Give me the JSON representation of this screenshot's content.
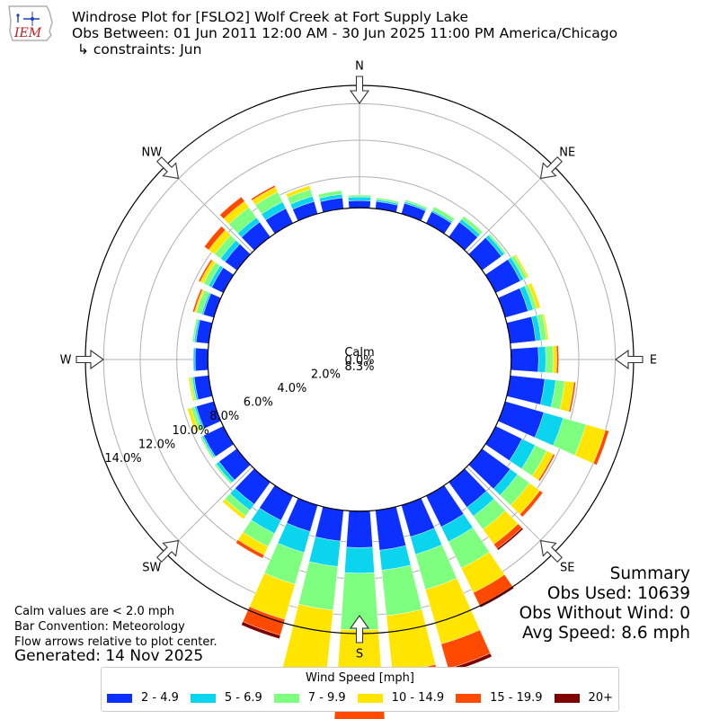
{
  "header": {
    "title": "Windrose Plot for [FSLO2] Wolf Creek at Fort Supply Lake",
    "obs_between": "Obs Between: 01 Jun 2011 12:00 AM - 30 Jun 2025 11:00 PM America/Chicago",
    "constraints": "↳ constraints: Jun",
    "logo_text": "IEM"
  },
  "footer": {
    "calm_note": "Calm values are < 2.0 mph",
    "bar_convention": "Bar Convention: Meteorology",
    "flow_note": "Flow arrows relative to plot center.",
    "generated": "Generated: 14 Nov 2025"
  },
  "summary": {
    "title": "Summary",
    "obs_used": "Obs Used: 10639",
    "obs_without_wind": "Obs Without Wind: 0",
    "avg_speed": "Avg Speed: 8.6 mph"
  },
  "chart_data": {
    "type": "windrose",
    "calm_label": "Calm",
    "calm_value": "8.3%",
    "calm_percent": 8.3,
    "radial_ticks": [
      0,
      2,
      4,
      6,
      8,
      10,
      12,
      14
    ],
    "radial_tick_labels": [
      "0.0%",
      "2.0%",
      "4.0%",
      "6.0%",
      "8.0%",
      "10.0%",
      "12.0%",
      "14.0%"
    ],
    "rmax": 15,
    "compass_labels": [
      "N",
      "NE",
      "E",
      "SE",
      "S",
      "SW",
      "W",
      "NW"
    ],
    "legend_title": "Wind Speed [mph]",
    "speed_bins": [
      {
        "label": "2 - 4.9",
        "color": "#0b30ff"
      },
      {
        "label": "5 - 6.9",
        "color": "#0bd5ee"
      },
      {
        "label": "7 - 9.9",
        "color": "#7fff7f"
      },
      {
        "label": "10 - 14.9",
        "color": "#ffe500"
      },
      {
        "label": "15 - 19.9",
        "color": "#ff4a00"
      },
      {
        "label": "20+",
        "color": "#7f0000"
      }
    ],
    "directions_deg": [
      0,
      10,
      20,
      30,
      40,
      50,
      60,
      70,
      80,
      90,
      100,
      110,
      120,
      130,
      140,
      150,
      160,
      170,
      180,
      190,
      200,
      210,
      220,
      230,
      240,
      250,
      260,
      270,
      280,
      290,
      300,
      310,
      320,
      330,
      340,
      350
    ],
    "cumulative_percent": [
      [
        8.7,
        8.9,
        9.0,
        9.0,
        9.0,
        9.0
      ],
      [
        8.7,
        8.8,
        8.9,
        8.9,
        8.9,
        8.9
      ],
      [
        8.9,
        9.0,
        9.1,
        9.1,
        9.1,
        9.1
      ],
      [
        9.0,
        9.1,
        9.3,
        9.3,
        9.3,
        9.3
      ],
      [
        9.3,
        9.5,
        9.7,
        9.7,
        9.7,
        9.7
      ],
      [
        9.6,
        9.8,
        9.9,
        9.9,
        9.9,
        9.9
      ],
      [
        9.8,
        10.0,
        10.2,
        10.3,
        10.3,
        10.3
      ],
      [
        9.6,
        9.9,
        10.1,
        10.3,
        10.3,
        10.3
      ],
      [
        9.7,
        10.0,
        10.3,
        10.4,
        10.4,
        10.4
      ],
      [
        9.8,
        10.2,
        10.6,
        10.8,
        10.9,
        10.9
      ],
      [
        10.2,
        10.8,
        11.3,
        11.8,
        11.9,
        11.9
      ],
      [
        10.5,
        11.6,
        12.9,
        14.0,
        14.2,
        14.2
      ],
      [
        9.9,
        10.7,
        11.4,
        11.8,
        11.9,
        11.9
      ],
      [
        10.2,
        10.7,
        11.5,
        12.2,
        12.4,
        12.4
      ],
      [
        10.0,
        10.6,
        11.5,
        12.5,
        12.8,
        12.9
      ],
      [
        10.2,
        11.1,
        12.7,
        14.2,
        15.0,
        15.1
      ],
      [
        10.1,
        11.1,
        13.1,
        16.2,
        17.6,
        17.8
      ],
      [
        10.5,
        11.6,
        14.1,
        17.2,
        18.9,
        19.2
      ],
      [
        10.3,
        11.7,
        14.8,
        18.8,
        20.2,
        20.4
      ],
      [
        10.0,
        11.4,
        13.8,
        17.4,
        18.8,
        19.1
      ],
      [
        9.8,
        11.0,
        12.8,
        14.8,
        15.7,
        15.9
      ],
      [
        9.8,
        10.6,
        11.4,
        11.9,
        12.1,
        12.1
      ],
      [
        9.8,
        10.2,
        10.6,
        10.8,
        10.8,
        10.8
      ],
      [
        9.5,
        9.7,
        9.8,
        9.8,
        9.8,
        9.8
      ],
      [
        9.5,
        9.6,
        9.7,
        9.7,
        9.7,
        9.7
      ],
      [
        9.3,
        9.4,
        9.6,
        9.8,
        9.8,
        9.8
      ],
      [
        9.1,
        9.2,
        9.3,
        9.4,
        9.4,
        9.4
      ],
      [
        9.0,
        9.1,
        9.1,
        9.1,
        9.1,
        9.1
      ],
      [
        9.0,
        9.1,
        9.2,
        9.2,
        9.2,
        9.2
      ],
      [
        8.9,
        9.0,
        9.3,
        9.4,
        9.5,
        9.5
      ],
      [
        9.0,
        9.2,
        9.5,
        9.7,
        9.8,
        9.8
      ],
      [
        9.1,
        9.4,
        9.8,
        10.2,
        10.5,
        10.5
      ],
      [
        9.3,
        9.6,
        10.3,
        10.7,
        11.0,
        11.0
      ],
      [
        9.2,
        9.6,
        10.2,
        10.5,
        10.6,
        10.6
      ],
      [
        9.0,
        9.3,
        9.7,
        9.9,
        9.9,
        9.9
      ],
      [
        8.9,
        9.1,
        9.3,
        9.3,
        9.3,
        9.3
      ]
    ]
  }
}
